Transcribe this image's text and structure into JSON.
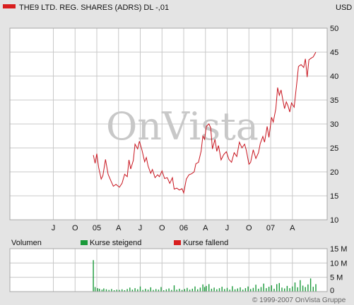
{
  "header": {
    "title": "THE9 LTD. REG. SHARES (ADRS) DL -,01",
    "currency": "USD",
    "legend_color": "#d81e1e"
  },
  "watermark": "OnVista",
  "copyright": "© 1999-2007 OnVista Gruppe",
  "colors": {
    "price_line": "#c8141e",
    "grid": "#c8c8c8",
    "plot_bg": "#ffffff",
    "up": "#1a9a3a",
    "down": "#d81e1e",
    "volume": "#1a9a3a"
  },
  "chart_data": [
    {
      "type": "line",
      "title": "THE9 LTD. REG. SHARES (ADRS) DL -,01",
      "ylabel": "USD",
      "ylim": [
        10,
        50
      ],
      "yticks": [
        10,
        15,
        20,
        25,
        30,
        35,
        40,
        45,
        50
      ],
      "grid": true,
      "x_range": [
        2004.0,
        2007.65
      ],
      "xticks": [
        {
          "label": "J",
          "x": 2004.5
        },
        {
          "label": "O",
          "x": 2004.75
        },
        {
          "label": "05",
          "x": 2005.0
        },
        {
          "label": "A",
          "x": 2005.25
        },
        {
          "label": "J",
          "x": 2005.5
        },
        {
          "label": "O",
          "x": 2005.75
        },
        {
          "label": "06",
          "x": 2006.0
        },
        {
          "label": "A",
          "x": 2006.25
        },
        {
          "label": "J",
          "x": 2006.5
        },
        {
          "label": "O",
          "x": 2006.75
        },
        {
          "label": "07",
          "x": 2007.0
        },
        {
          "label": "A",
          "x": 2007.25
        }
      ],
      "series": [
        {
          "values": [
            [
              2004.96,
              23.5
            ],
            [
              2004.98,
              21.8
            ],
            [
              2005.0,
              23.8
            ],
            [
              2005.02,
              21.0
            ],
            [
              2005.05,
              18.5
            ],
            [
              2005.07,
              19.2
            ],
            [
              2005.1,
              22.6
            ],
            [
              2005.13,
              19.5
            ],
            [
              2005.16,
              18.2
            ],
            [
              2005.19,
              17.0
            ],
            [
              2005.22,
              17.4
            ],
            [
              2005.26,
              16.8
            ],
            [
              2005.29,
              17.6
            ],
            [
              2005.32,
              19.5
            ],
            [
              2005.35,
              19.0
            ],
            [
              2005.37,
              22.5
            ],
            [
              2005.39,
              20.6
            ],
            [
              2005.42,
              22.4
            ],
            [
              2005.44,
              25.8
            ],
            [
              2005.47,
              24.8
            ],
            [
              2005.49,
              26.4
            ],
            [
              2005.52,
              24.5
            ],
            [
              2005.55,
              22.1
            ],
            [
              2005.57,
              23.0
            ],
            [
              2005.59,
              21.2
            ],
            [
              2005.62,
              19.7
            ],
            [
              2005.64,
              20.5
            ],
            [
              2005.67,
              18.8
            ],
            [
              2005.7,
              19.4
            ],
            [
              2005.72,
              19.0
            ],
            [
              2005.75,
              20.2
            ],
            [
              2005.78,
              18.6
            ],
            [
              2005.81,
              18.8
            ],
            [
              2005.84,
              17.6
            ],
            [
              2005.87,
              18.8
            ],
            [
              2005.89,
              16.4
            ],
            [
              2005.92,
              16.6
            ],
            [
              2005.95,
              16.2
            ],
            [
              2005.98,
              16.5
            ],
            [
              2006.0,
              15.6
            ],
            [
              2006.03,
              18.5
            ],
            [
              2006.06,
              19.4
            ],
            [
              2006.09,
              19.6
            ],
            [
              2006.12,
              20.0
            ],
            [
              2006.14,
              21.7
            ],
            [
              2006.17,
              22.0
            ],
            [
              2006.2,
              24.3
            ],
            [
              2006.22,
              27.5
            ],
            [
              2006.24,
              26.8
            ],
            [
              2006.26,
              29.5
            ],
            [
              2006.29,
              30.0
            ],
            [
              2006.31,
              29.2
            ],
            [
              2006.33,
              24.8
            ],
            [
              2006.36,
              26.8
            ],
            [
              2006.38,
              24.3
            ],
            [
              2006.4,
              25.5
            ],
            [
              2006.43,
              22.5
            ],
            [
              2006.46,
              23.6
            ],
            [
              2006.49,
              24.2
            ],
            [
              2006.52,
              22.6
            ],
            [
              2006.55,
              22.0
            ],
            [
              2006.58,
              24.0
            ],
            [
              2006.61,
              23.2
            ],
            [
              2006.64,
              26.2
            ],
            [
              2006.67,
              25.0
            ],
            [
              2006.7,
              25.8
            ],
            [
              2006.72,
              24.5
            ],
            [
              2006.75,
              21.6
            ],
            [
              2006.77,
              22.0
            ],
            [
              2006.8,
              24.6
            ],
            [
              2006.83,
              22.8
            ],
            [
              2006.86,
              24.0
            ],
            [
              2006.88,
              25.9
            ],
            [
              2006.91,
              27.4
            ],
            [
              2006.93,
              26.2
            ],
            [
              2006.96,
              29.5
            ],
            [
              2006.98,
              27.2
            ],
            [
              2007.01,
              31.4
            ],
            [
              2007.03,
              30.4
            ],
            [
              2007.06,
              33.2
            ],
            [
              2007.08,
              37.6
            ],
            [
              2007.1,
              36.0
            ],
            [
              2007.12,
              37.1
            ],
            [
              2007.14,
              35.0
            ],
            [
              2007.16,
              33.2
            ],
            [
              2007.18,
              34.6
            ],
            [
              2007.2,
              33.8
            ],
            [
              2007.22,
              32.5
            ],
            [
              2007.24,
              34.4
            ],
            [
              2007.27,
              33.5
            ],
            [
              2007.3,
              38.4
            ],
            [
              2007.32,
              42.0
            ],
            [
              2007.35,
              42.4
            ],
            [
              2007.38,
              41.8
            ],
            [
              2007.4,
              43.6
            ],
            [
              2007.42,
              39.8
            ],
            [
              2007.44,
              43.4
            ],
            [
              2007.47,
              43.8
            ],
            [
              2007.49,
              44.0
            ],
            [
              2007.52,
              45.0
            ]
          ]
        }
      ]
    },
    {
      "type": "bar",
      "title": "Volumen",
      "legend": [
        "Kurse steigend",
        "Kurse fallend"
      ],
      "ylim": [
        0,
        15
      ],
      "yticks": [
        {
          "label": "0",
          "value": 0
        },
        {
          "label": "5 M",
          "value": 5
        },
        {
          "label": "10 M",
          "value": 10
        },
        {
          "label": "15 M",
          "value": 15
        }
      ],
      "grid": true,
      "unit": "M",
      "x_range": [
        2004.0,
        2007.65
      ],
      "values": [
        [
          2004.96,
          11.0
        ],
        [
          2004.98,
          1.6
        ],
        [
          2005.01,
          1.2
        ],
        [
          2005.03,
          1.0
        ],
        [
          2005.06,
          0.7
        ],
        [
          2005.08,
          1.1
        ],
        [
          2005.11,
          0.8
        ],
        [
          2005.14,
          0.6
        ],
        [
          2005.17,
          0.9
        ],
        [
          2005.2,
          0.5
        ],
        [
          2005.23,
          0.7
        ],
        [
          2005.26,
          0.6
        ],
        [
          2005.29,
          0.8
        ],
        [
          2005.32,
          0.5
        ],
        [
          2005.35,
          0.9
        ],
        [
          2005.38,
          1.4
        ],
        [
          2005.41,
          0.7
        ],
        [
          2005.44,
          1.2
        ],
        [
          2005.47,
          0.8
        ],
        [
          2005.5,
          1.8
        ],
        [
          2005.53,
          0.6
        ],
        [
          2005.56,
          1.0
        ],
        [
          2005.59,
          0.7
        ],
        [
          2005.62,
          1.5
        ],
        [
          2005.65,
          0.6
        ],
        [
          2005.68,
          0.9
        ],
        [
          2005.71,
          0.7
        ],
        [
          2005.74,
          1.6
        ],
        [
          2005.77,
          0.5
        ],
        [
          2005.8,
          0.8
        ],
        [
          2005.83,
          1.1
        ],
        [
          2005.86,
          0.6
        ],
        [
          2005.89,
          2.2
        ],
        [
          2005.92,
          0.7
        ],
        [
          2005.95,
          1.0
        ],
        [
          2005.98,
          0.6
        ],
        [
          2006.01,
          0.9
        ],
        [
          2006.04,
          1.3
        ],
        [
          2006.07,
          0.7
        ],
        [
          2006.1,
          1.0
        ],
        [
          2006.13,
          1.8
        ],
        [
          2006.16,
          0.8
        ],
        [
          2006.19,
          1.4
        ],
        [
          2006.22,
          2.5
        ],
        [
          2006.24,
          1.6
        ],
        [
          2006.26,
          2.0
        ],
        [
          2006.29,
          2.6
        ],
        [
          2006.32,
          1.0
        ],
        [
          2006.35,
          1.4
        ],
        [
          2006.38,
          0.8
        ],
        [
          2006.41,
          1.2
        ],
        [
          2006.44,
          1.7
        ],
        [
          2006.47,
          0.9
        ],
        [
          2006.5,
          1.3
        ],
        [
          2006.53,
          0.7
        ],
        [
          2006.56,
          1.9
        ],
        [
          2006.59,
          0.8
        ],
        [
          2006.62,
          1.1
        ],
        [
          2006.65,
          1.5
        ],
        [
          2006.68,
          0.7
        ],
        [
          2006.71,
          1.2
        ],
        [
          2006.74,
          1.8
        ],
        [
          2006.77,
          0.9
        ],
        [
          2006.8,
          1.3
        ],
        [
          2006.83,
          2.4
        ],
        [
          2006.86,
          1.0
        ],
        [
          2006.89,
          1.6
        ],
        [
          2006.92,
          2.8
        ],
        [
          2006.95,
          1.2
        ],
        [
          2006.98,
          1.7
        ],
        [
          2007.01,
          2.2
        ],
        [
          2007.04,
          1.0
        ],
        [
          2007.07,
          2.6
        ],
        [
          2007.1,
          3.0
        ],
        [
          2007.13,
          1.4
        ],
        [
          2007.16,
          1.1
        ],
        [
          2007.19,
          2.0
        ],
        [
          2007.22,
          1.2
        ],
        [
          2007.25,
          1.8
        ],
        [
          2007.28,
          3.2
        ],
        [
          2007.31,
          1.5
        ],
        [
          2007.34,
          4.0
        ],
        [
          2007.37,
          2.1
        ],
        [
          2007.4,
          1.6
        ],
        [
          2007.43,
          2.5
        ],
        [
          2007.46,
          4.6
        ],
        [
          2007.49,
          1.7
        ],
        [
          2007.52,
          2.6
        ]
      ]
    }
  ]
}
